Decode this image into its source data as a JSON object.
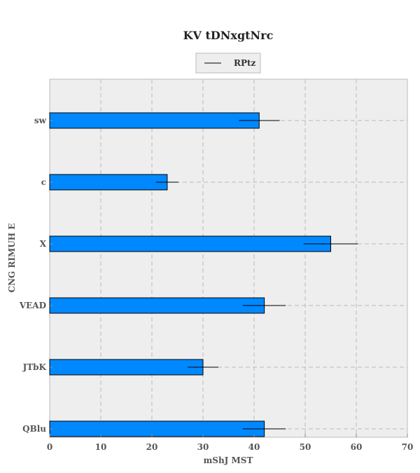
{
  "chart_data": {
    "type": "bar",
    "orientation": "horizontal",
    "title": "KV tDNxgtNrc",
    "xlabel": "mShJ  MST",
    "ylabel": "CNG  RIMUH  E",
    "categories": [
      "sw",
      "c",
      "X",
      "VEAD",
      "JTbK",
      "QBlu"
    ],
    "series": [
      {
        "name": "RPtz",
        "values": [
          41,
          23,
          55,
          42,
          30,
          42
        ],
        "errors": [
          4.0,
          2.2,
          5.3,
          4.2,
          3.0,
          4.2
        ]
      }
    ],
    "xlim": [
      0,
      70
    ],
    "xticks": [
      0,
      10,
      20,
      30,
      40,
      50,
      60,
      70
    ],
    "grid": true,
    "legend_position": "top-center",
    "colors": {
      "bar_fill": "#0088ff",
      "bar_edge": "#000000",
      "plot_bg": "#eeeeee",
      "grid": "#bbbbbb",
      "error_bar": "#000000"
    }
  }
}
